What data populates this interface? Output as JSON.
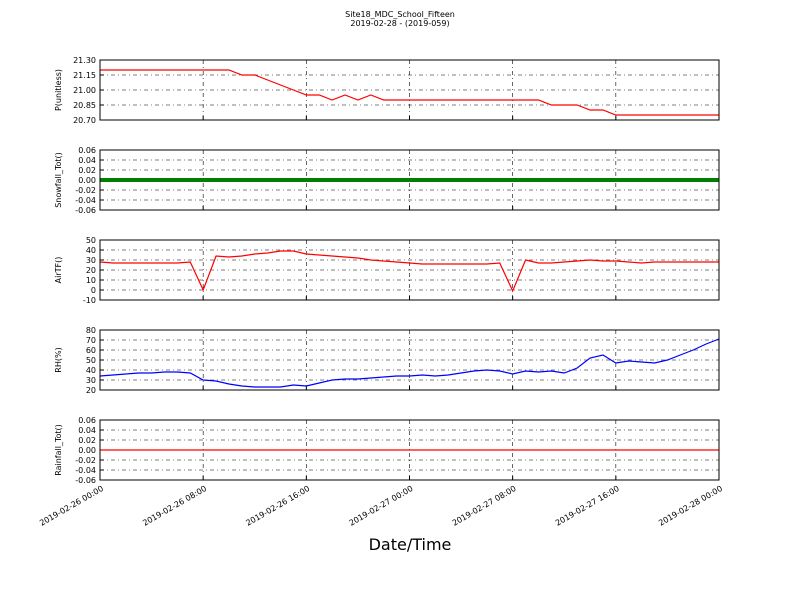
{
  "header": {
    "title": "Site18_MDC_School_Fifteen",
    "subtitle": "2019-02-28 - (2019-059)"
  },
  "chart_data": [
    {
      "type": "line",
      "ylabel": "P(unitless)",
      "color": "#ff0000",
      "grid": true,
      "ylim": [
        20.7,
        21.3
      ],
      "yticks": [
        {
          "value": 20.7,
          "label": "20.70"
        },
        {
          "value": 20.85,
          "label": "20.85"
        },
        {
          "value": 21.0,
          "label": "21.00"
        },
        {
          "value": 21.15,
          "label": "21.15"
        },
        {
          "value": 21.3,
          "label": "21.30"
        }
      ],
      "values": [
        21.2,
        21.2,
        21.2,
        21.2,
        21.2,
        21.2,
        21.2,
        21.2,
        21.2,
        21.2,
        21.2,
        21.15,
        21.15,
        21.1,
        21.05,
        21.0,
        20.95,
        20.95,
        20.9,
        20.95,
        20.9,
        20.95,
        20.9,
        20.9,
        20.9,
        20.9,
        20.9,
        20.9,
        20.9,
        20.9,
        20.9,
        20.9,
        20.9,
        20.9,
        20.9,
        20.85,
        20.85,
        20.85,
        20.8,
        20.8,
        20.75,
        20.75,
        20.75,
        20.75,
        20.75,
        20.75,
        20.75,
        20.75,
        20.75
      ]
    },
    {
      "type": "line",
      "ylabel": "Snowfall_Tot()",
      "color": "#008000",
      "grid": true,
      "ylim": [
        -0.06,
        0.06
      ],
      "yticks": [
        -0.06,
        -0.04,
        -0.02,
        {
          "value": 0,
          "label": "0.00"
        },
        0.02,
        0.04,
        0.06
      ],
      "values": [
        0,
        0,
        0,
        0,
        0,
        0,
        0,
        0,
        0,
        0,
        0,
        0,
        0,
        0,
        0,
        0,
        0,
        0,
        0,
        0,
        0,
        0,
        0,
        0,
        0,
        0,
        0,
        0,
        0,
        0,
        0,
        0,
        0,
        0,
        0,
        0,
        0,
        0,
        0,
        0,
        0,
        0,
        0,
        0,
        0,
        0,
        0,
        0,
        0
      ]
    },
    {
      "type": "line",
      "ylabel": "AirTF()",
      "color": "#ff0000",
      "grid": true,
      "ylim": [
        -10,
        50
      ],
      "yticks": [
        -10,
        0,
        10,
        20,
        30,
        40,
        50
      ],
      "values": [
        28,
        27,
        27,
        27,
        27,
        27,
        27,
        28,
        0,
        34,
        33,
        34,
        36,
        37,
        39,
        39,
        36,
        35,
        34,
        33,
        32,
        30,
        29,
        28,
        27,
        26,
        26,
        26,
        26,
        26,
        26,
        27,
        -1,
        30,
        27,
        27,
        28,
        29,
        30,
        29,
        29,
        28,
        27,
        28,
        28,
        28,
        28,
        28,
        28
      ]
    },
    {
      "type": "line",
      "ylabel": "RH(%)",
      "color": "#0000ff",
      "grid": true,
      "ylim": [
        20,
        80
      ],
      "yticks": [
        20,
        30,
        40,
        50,
        60,
        70,
        80
      ],
      "values": [
        34,
        35,
        36,
        37,
        37,
        38,
        38,
        37,
        30,
        29,
        26,
        24,
        23,
        23,
        23,
        25,
        24,
        27,
        30,
        31,
        31,
        32,
        33,
        34,
        34,
        35,
        34,
        35,
        37,
        39,
        40,
        39,
        36,
        39,
        38,
        39,
        37,
        42,
        52,
        55,
        47,
        49,
        48,
        47,
        50,
        55,
        60,
        66,
        71
      ]
    },
    {
      "type": "line",
      "ylabel": "Rainfall_Tot()",
      "color": "#ff0000",
      "grid": true,
      "ylim": [
        -0.06,
        0.06
      ],
      "yticks": [
        -0.06,
        -0.04,
        -0.02,
        {
          "value": 0,
          "label": "0.00"
        },
        0.02,
        0.04,
        0.06
      ],
      "values": [
        0,
        0,
        0,
        0,
        0,
        0,
        0,
        0,
        0,
        0,
        0,
        0,
        0,
        0,
        0,
        0,
        0,
        0,
        0,
        0,
        0,
        0,
        0,
        0,
        0,
        0,
        0,
        0,
        0,
        0,
        0,
        0,
        0,
        0,
        0,
        0,
        0,
        0,
        0,
        0,
        0,
        0,
        0,
        0,
        0,
        0,
        0,
        0,
        0
      ],
      "xlabel": "Date/Time",
      "xlim": [
        "2019-02-26 00:00",
        "2019-02-28 00:00"
      ],
      "xticks": [
        "2019-02-26 00:00",
        "2019-02-26 08:00",
        "2019-02-26 16:00",
        "2019-02-27 00:00",
        "2019-02-27 08:00",
        "2019-02-27 16:00",
        "2019-02-28 00:00"
      ],
      "x": [
        "2019-02-26 00:00",
        "2019-02-26 01:00",
        "2019-02-26 02:00",
        "2019-02-26 03:00",
        "2019-02-26 04:00",
        "2019-02-26 05:00",
        "2019-02-26 06:00",
        "2019-02-26 07:00",
        "2019-02-26 08:00",
        "2019-02-26 09:00",
        "2019-02-26 10:00",
        "2019-02-26 11:00",
        "2019-02-26 12:00",
        "2019-02-26 13:00",
        "2019-02-26 14:00",
        "2019-02-26 15:00",
        "2019-02-26 16:00",
        "2019-02-26 17:00",
        "2019-02-26 18:00",
        "2019-02-26 19:00",
        "2019-02-26 20:00",
        "2019-02-26 21:00",
        "2019-02-26 22:00",
        "2019-02-26 23:00",
        "2019-02-27 00:00",
        "2019-02-27 01:00",
        "2019-02-27 02:00",
        "2019-02-27 03:00",
        "2019-02-27 04:00",
        "2019-02-27 05:00",
        "2019-02-27 06:00",
        "2019-02-27 07:00",
        "2019-02-27 08:00",
        "2019-02-27 09:00",
        "2019-02-27 10:00",
        "2019-02-27 11:00",
        "2019-02-27 12:00",
        "2019-02-27 13:00",
        "2019-02-27 14:00",
        "2019-02-27 15:00",
        "2019-02-27 16:00",
        "2019-02-27 17:00",
        "2019-02-27 18:00",
        "2019-02-27 19:00",
        "2019-02-27 20:00",
        "2019-02-27 21:00",
        "2019-02-27 22:00",
        "2019-02-27 23:00",
        "2019-02-28 00:00"
      ]
    }
  ]
}
